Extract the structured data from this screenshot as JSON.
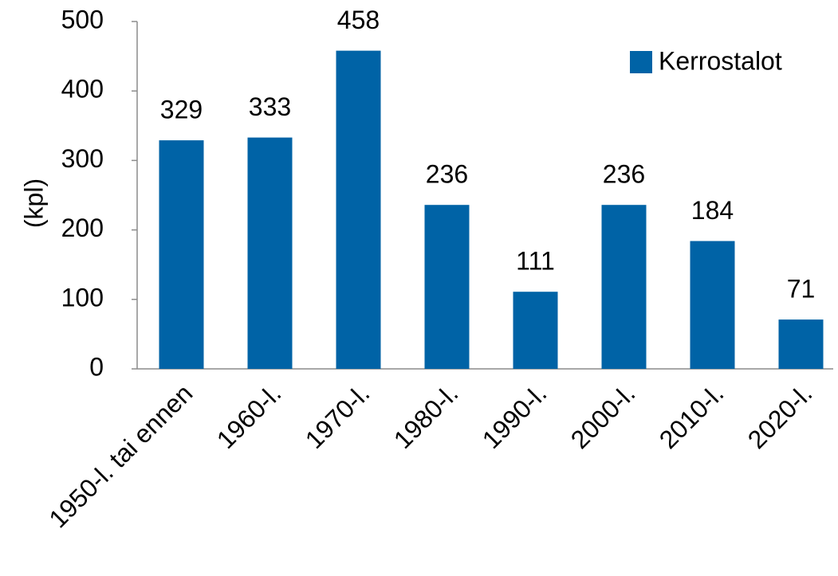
{
  "chart_data": {
    "type": "bar",
    "y_label": "(kpl)",
    "categories": [
      "1950-l. tai ennen",
      "1960-l.",
      "1970-l.",
      "1980-l.",
      "1990-l.",
      "2000-l.",
      "2010-l.",
      "2020-l."
    ],
    "series": [
      {
        "name": "Kerrostalot",
        "color": "#0063a6",
        "values": [
          329,
          333,
          458,
          236,
          111,
          236,
          184,
          71
        ]
      }
    ],
    "ylim": [
      0,
      500
    ],
    "yticks": [
      0,
      100,
      200,
      300,
      400,
      500
    ],
    "grid": false,
    "legend": "top-right"
  }
}
